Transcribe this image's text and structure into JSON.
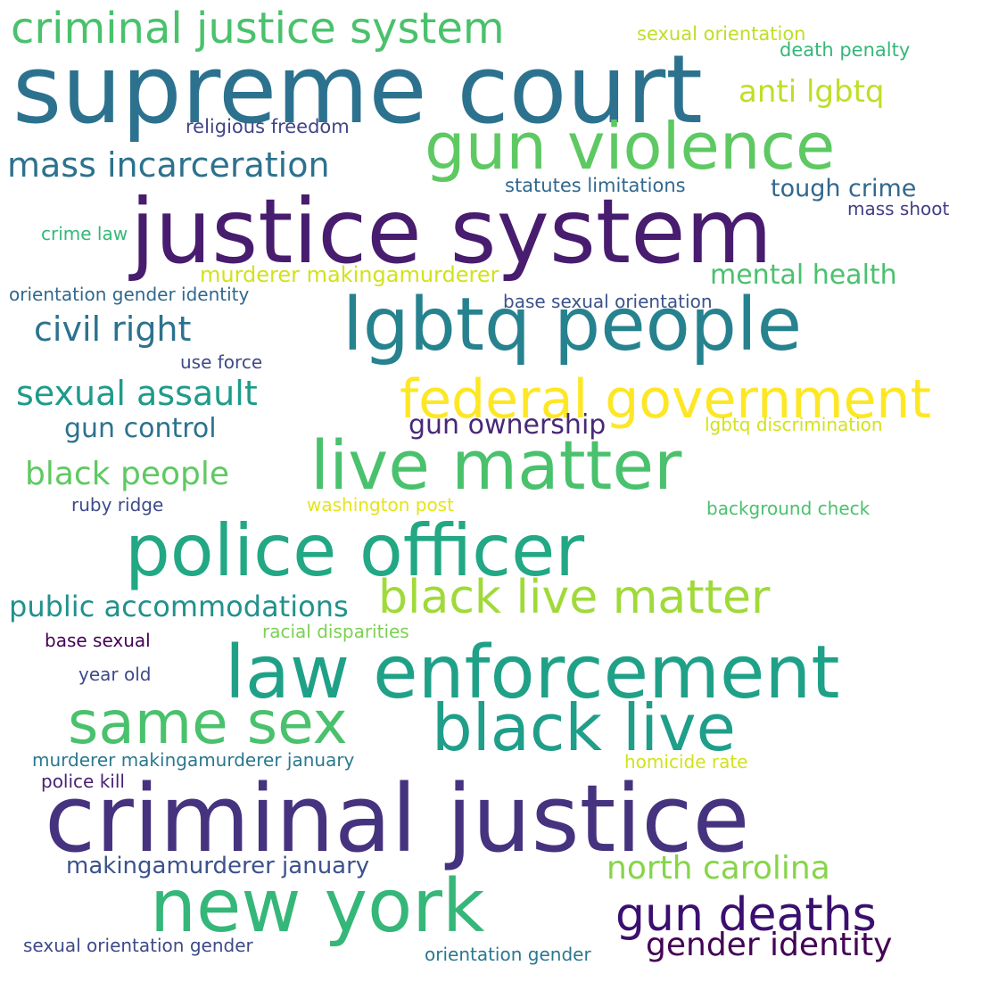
{
  "words": [
    {
      "text": "criminal justice system",
      "color": "#4ac16d"
    },
    {
      "text": "sexual orientation",
      "color": "#bddf26"
    },
    {
      "text": "supreme court",
      "color": "#2c728e"
    },
    {
      "text": "death penalty",
      "color": "#35b779"
    },
    {
      "text": "anti lgbtq",
      "color": "#bddf26"
    },
    {
      "text": "religious freedom",
      "color": "#414487"
    },
    {
      "text": "gun violence",
      "color": "#5ec962"
    },
    {
      "text": "mass incarceration",
      "color": "#2c728e"
    },
    {
      "text": "statutes limitations",
      "color": "#31688e"
    },
    {
      "text": "tough crime",
      "color": "#31688e"
    },
    {
      "text": "justice system",
      "color": "#481c6e"
    },
    {
      "text": "mass shoot",
      "color": "#433e85"
    },
    {
      "text": "crime law",
      "color": "#35b779"
    },
    {
      "text": "murderer makingamurderer",
      "color": "#d2e21b"
    },
    {
      "text": "mental health",
      "color": "#4ac16d"
    },
    {
      "text": "orientation gender identity",
      "color": "#31688e"
    },
    {
      "text": "base sexual orientation",
      "color": "#3b528b"
    },
    {
      "text": "lgbtq people",
      "color": "#26828e"
    },
    {
      "text": "civil right",
      "color": "#2c728e"
    },
    {
      "text": "use force",
      "color": "#3e4a89"
    },
    {
      "text": "sexual assault",
      "color": "#1e9b8a"
    },
    {
      "text": "federal government",
      "color": "#fde725"
    },
    {
      "text": "gun control",
      "color": "#2c728e"
    },
    {
      "text": "gun ownership",
      "color": "#482878"
    },
    {
      "text": "lgbtq discrimination",
      "color": "#d2e21b"
    },
    {
      "text": "live matter",
      "color": "#4ac16d"
    },
    {
      "text": "black people",
      "color": "#5ec962"
    },
    {
      "text": "ruby ridge",
      "color": "#3e4a89"
    },
    {
      "text": "washington post",
      "color": "#e5e419"
    },
    {
      "text": "background check",
      "color": "#4ac16d"
    },
    {
      "text": "police officer",
      "color": "#22a884"
    },
    {
      "text": "public accommodations",
      "color": "#21918c"
    },
    {
      "text": "black live matter",
      "color": "#a0da39"
    },
    {
      "text": "base sexual",
      "color": "#440154"
    },
    {
      "text": "racial disparities",
      "color": "#7ad151"
    },
    {
      "text": "law enforcement",
      "color": "#1fa187"
    },
    {
      "text": "year old",
      "color": "#3e4a89"
    },
    {
      "text": "same sex",
      "color": "#4ac16d"
    },
    {
      "text": "black live",
      "color": "#1f9e89"
    },
    {
      "text": "murderer makingamurderer january",
      "color": "#2a788e"
    },
    {
      "text": "homicide rate",
      "color": "#d2e21b"
    },
    {
      "text": "police kill",
      "color": "#482173"
    },
    {
      "text": "criminal justice",
      "color": "#46337f"
    },
    {
      "text": "makingamurderer january",
      "color": "#3b528b"
    },
    {
      "text": "north carolina",
      "color": "#86d549"
    },
    {
      "text": "new york",
      "color": "#35b779"
    },
    {
      "text": "gun deaths",
      "color": "#3b0f70"
    },
    {
      "text": "gender identity",
      "color": "#440154"
    },
    {
      "text": "sexual orientation gender",
      "color": "#3e4a89"
    },
    {
      "text": "orientation gender",
      "color": "#2a788e"
    }
  ]
}
